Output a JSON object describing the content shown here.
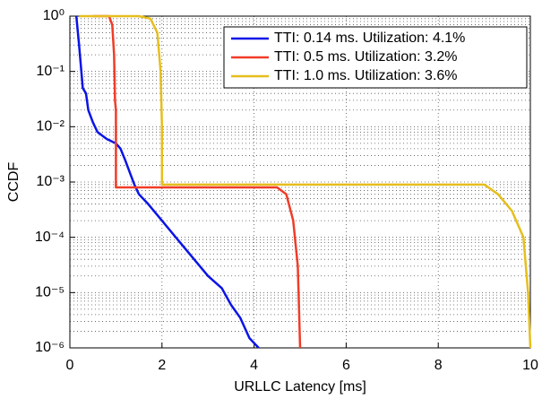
{
  "chart_data": {
    "type": "line",
    "xlabel": "URLLC Latency [ms]",
    "ylabel": "CCDF",
    "xlim": [
      0,
      10
    ],
    "xticks": [
      0,
      2,
      4,
      6,
      8,
      10
    ],
    "ylim": [
      1e-06,
      1
    ],
    "ylog": true,
    "yticks": [
      {
        "value": 1e-06,
        "label": "10⁻⁶"
      },
      {
        "value": 1e-05,
        "label": "10⁻⁵"
      },
      {
        "value": 0.0001,
        "label": "10⁻⁴"
      },
      {
        "value": 0.001,
        "label": "10⁻³"
      },
      {
        "value": 0.01,
        "label": "10⁻²"
      },
      {
        "value": 0.1,
        "label": "10⁻¹"
      },
      {
        "value": 1,
        "label": "10⁰"
      }
    ],
    "grid": true,
    "legend": "upper right",
    "series": [
      {
        "name": "TTI: 0.14 ms. Utilization: 4.1%",
        "color": "#0a14e6",
        "x": [
          0.14,
          0.2,
          0.28,
          0.35,
          0.4,
          0.5,
          0.6,
          0.8,
          1.0,
          1.1,
          1.2,
          1.3,
          1.4,
          1.5,
          1.7,
          2.0,
          2.3,
          2.6,
          3.0,
          3.3,
          3.5,
          3.7,
          3.9,
          4.1
        ],
        "values": [
          1,
          0.3,
          0.05,
          0.04,
          0.02,
          0.012,
          0.008,
          0.006,
          0.005,
          0.004,
          0.0025,
          0.0015,
          0.0009,
          0.0006,
          0.0004,
          0.0002,
          0.0001,
          5e-05,
          2e-05,
          1.2e-05,
          6e-06,
          3.5e-06,
          1.5e-06,
          1e-06
        ]
      },
      {
        "name": "TTI: 0.5 ms. Utilization: 3.2%",
        "color": "#f03c28",
        "x": [
          0.5,
          0.85,
          0.92,
          0.96,
          0.98,
          1.0,
          1.0,
          4.5,
          4.7,
          4.85,
          4.95,
          5.0
        ],
        "values": [
          1,
          1,
          0.7,
          0.2,
          0.03,
          0.02,
          0.0008,
          0.0008,
          0.0006,
          0.0002,
          3e-05,
          1e-06
        ]
      },
      {
        "name": "TTI: 1.0 ms. Utilization: 3.6%",
        "color": "#e6be1e",
        "x": [
          0.2,
          1.5,
          1.75,
          1.9,
          1.97,
          2.0,
          2.0,
          9.0,
          9.3,
          9.6,
          9.85,
          9.95,
          10
        ],
        "values": [
          1,
          1,
          0.9,
          0.5,
          0.1,
          0.01,
          0.0009,
          0.0009,
          0.0006,
          0.0003,
          0.0001,
          1e-05,
          1e-06
        ]
      }
    ]
  }
}
